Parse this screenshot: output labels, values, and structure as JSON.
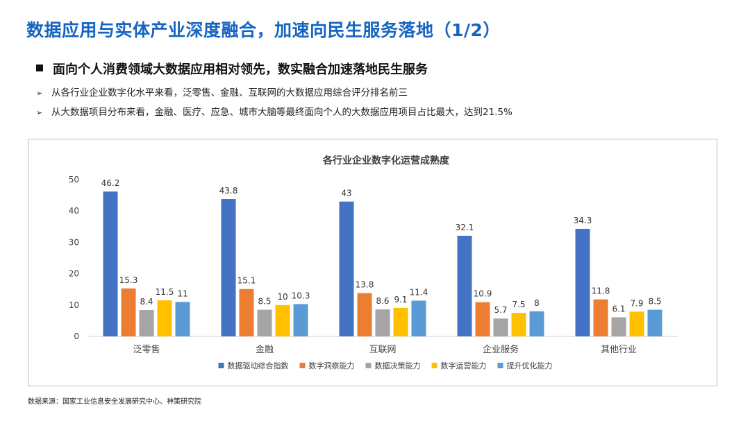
{
  "header": {
    "title": "数据应用与实体产业深度融合，加速向民生服务落地（1/2）",
    "subheading": "面向个人消费领域大数据应用相对领先，数实融合加速落地民生服务",
    "bullets": [
      "从各行业企业数字化水平来看，泛零售、金融、互联网的大数据应用综合评分排名前三",
      "从大数据项目分布来看，金融、医疗、应急、城市大脑等最终面向个人的大数据应用项目占比最大，达到21.5%"
    ],
    "bullet_marker": "➢"
  },
  "chart_data": {
    "type": "bar",
    "title": "各行业企业数字化运营成熟度",
    "categories": [
      "泛零售",
      "金融",
      "互联网",
      "企业服务",
      "其他行业"
    ],
    "series": [
      {
        "name": "数据驱动综合指数",
        "color": "#4472c4",
        "values": [
          46.2,
          43.8,
          43,
          32.1,
          34.3
        ]
      },
      {
        "name": "数字洞察能力",
        "color": "#ed7d31",
        "values": [
          15.3,
          15.1,
          13.8,
          10.9,
          11.8
        ]
      },
      {
        "name": "数据决策能力",
        "color": "#a5a5a5",
        "values": [
          8.4,
          8.5,
          8.6,
          5.7,
          6.1
        ]
      },
      {
        "name": "数字运营能力",
        "color": "#ffc000",
        "values": [
          11.5,
          10,
          9.1,
          7.5,
          7.9
        ]
      },
      {
        "name": "提升优化能力",
        "color": "#5b9bd5",
        "values": [
          11,
          10.3,
          11.4,
          8,
          8.5
        ]
      }
    ],
    "ylim": [
      0,
      50
    ],
    "yticks": [
      0,
      10,
      20,
      30,
      40,
      50
    ],
    "xlabel": "",
    "ylabel": "",
    "grid": false,
    "legend_position": "bottom"
  },
  "footer": {
    "source": "数据来源：国家工业信息安全发展研究中心、神策研究院"
  }
}
